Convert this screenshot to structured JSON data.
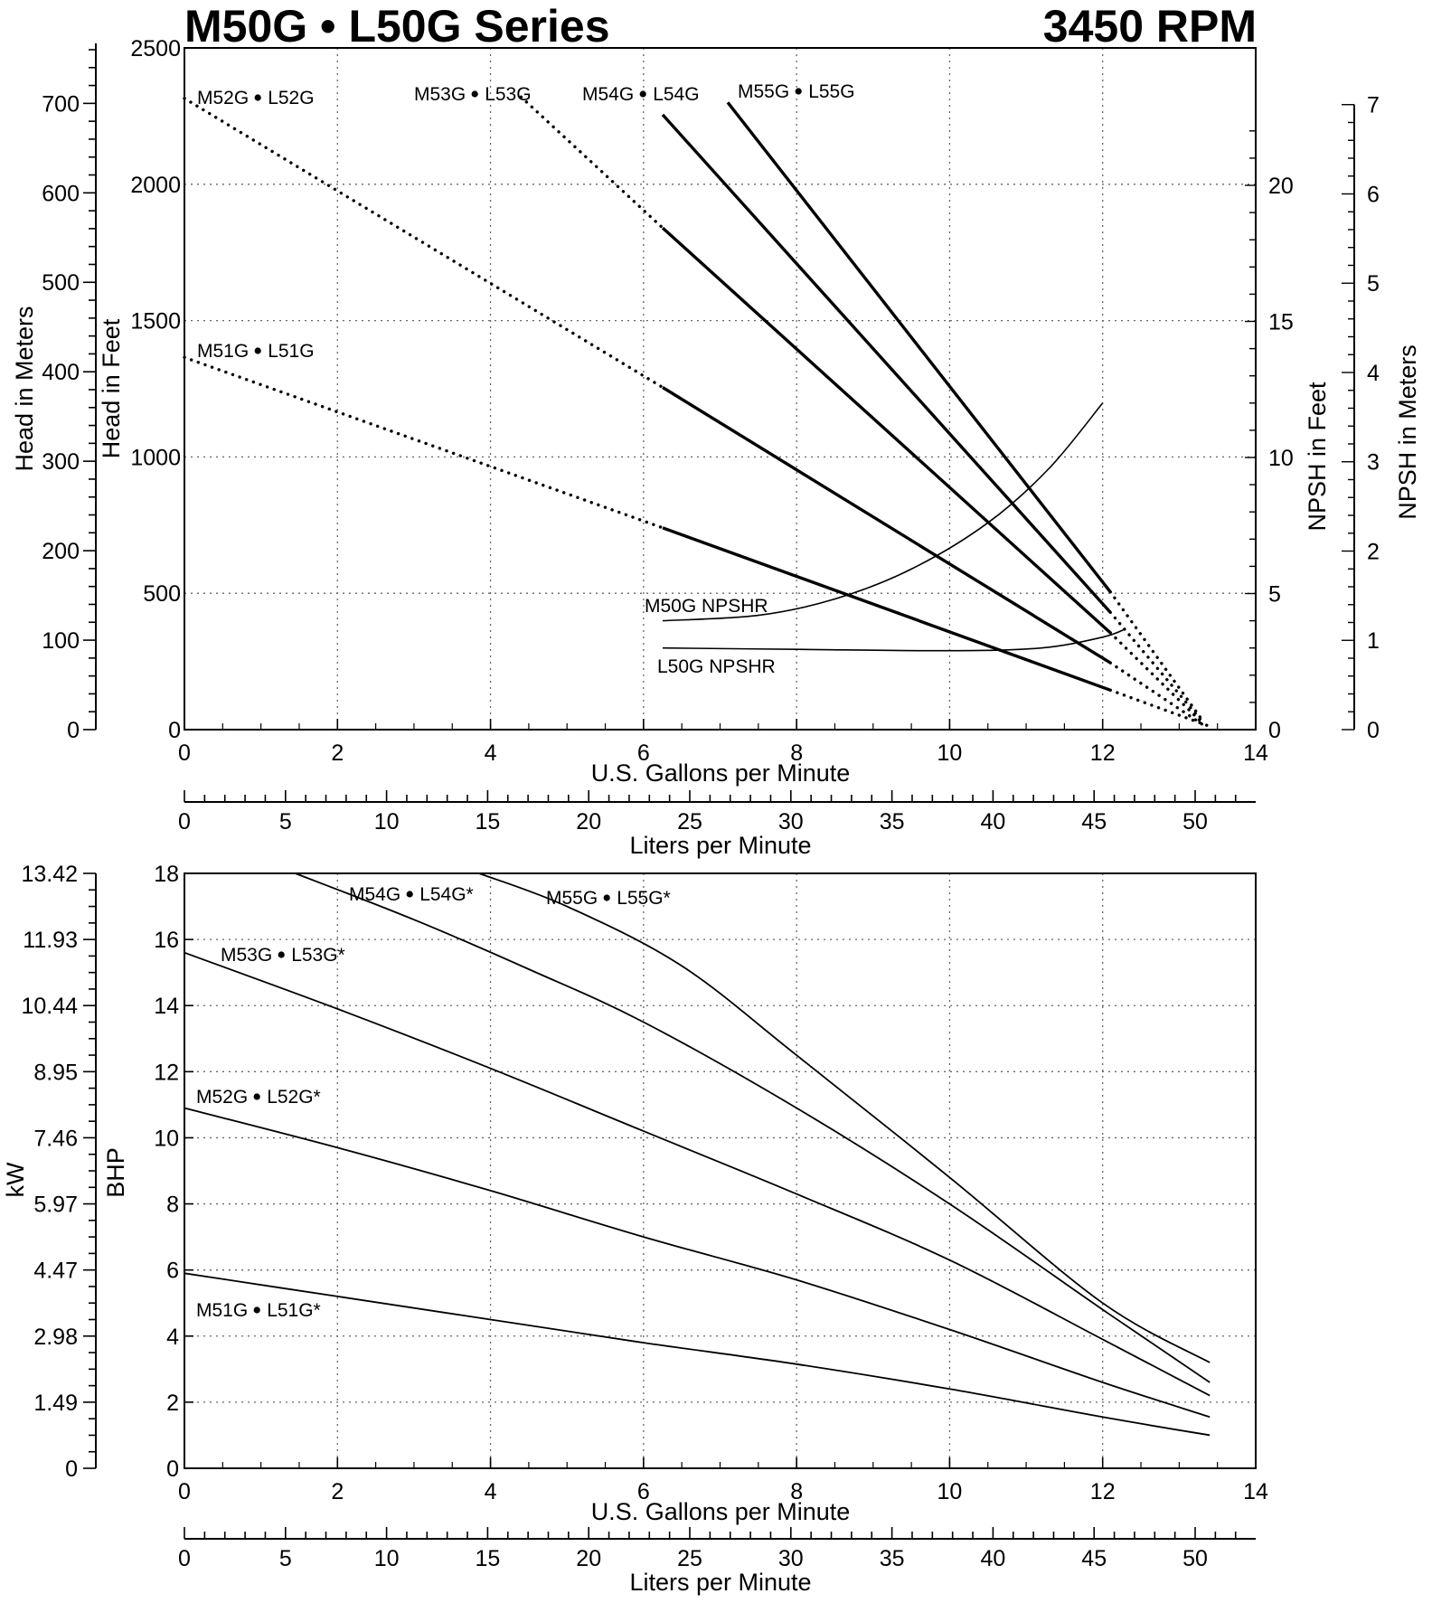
{
  "header": {
    "title_left": "M50G • L50G Series",
    "title_right": "3450 RPM"
  },
  "chart_data": [
    {
      "id": "head",
      "type": "line",
      "xlabel": "U.S. Gallons per Minute",
      "x2label": "Liters per Minute",
      "ylabel": "Head in Feet",
      "y2label": "Head in Meters",
      "y3label": "NPSH in Feet",
      "y4label": "NPSH in Meters",
      "xlim": [
        0,
        14
      ],
      "ylim": [
        0,
        2500
      ],
      "x_ticks": [
        "0",
        "2",
        "4",
        "6",
        "8",
        "10",
        "12",
        "14"
      ],
      "lpm_ticks": [
        "0",
        "5",
        "10",
        "15",
        "20",
        "25",
        "30",
        "35",
        "40",
        "45",
        "50"
      ],
      "y_ticks": [
        "0",
        "500",
        "1000",
        "1500",
        "2000",
        "2500"
      ],
      "meter_ticks": [
        "0",
        "100",
        "200",
        "300",
        "400",
        "500",
        "600",
        "700"
      ],
      "npsh_ft_ticks": [
        "0",
        "5",
        "10",
        "15",
        "20"
      ],
      "npsh_m_ticks": [
        "0",
        "1",
        "2",
        "3",
        "4",
        "5",
        "6",
        "7"
      ],
      "grid": true,
      "series": [
        {
          "name": "M51G • L51G",
          "dotted": [
            [
              0,
              1365
            ],
            [
              6.25,
              740
            ]
          ],
          "solid": [
            [
              6.25,
              740
            ],
            [
              12.1,
              145
            ]
          ],
          "tail": [
            [
              12.1,
              145
            ],
            [
              13.4,
              12
            ]
          ]
        },
        {
          "name": "M52G • L52G",
          "dotted": [
            [
              0,
              2315
            ],
            [
              6.25,
              1255
            ]
          ],
          "solid": [
            [
              6.25,
              1255
            ],
            [
              12.1,
              245
            ]
          ],
          "tail": [
            [
              12.1,
              245
            ],
            [
              13.3,
              20
            ]
          ]
        },
        {
          "name": "M53G • L53G",
          "dotted": [
            [
              4.4,
              2320
            ],
            [
              6.25,
              1840
            ]
          ],
          "solid": [
            [
              6.25,
              1840
            ],
            [
              12.1,
              355
            ]
          ],
          "tail": [
            [
              12.1,
              355
            ],
            [
              13.3,
              25
            ]
          ]
        },
        {
          "name": "M54G • L54G",
          "dotted": [],
          "solid": [
            [
              6.25,
              2255
            ],
            [
              12.1,
              430
            ]
          ],
          "tail": [
            [
              12.1,
              430
            ],
            [
              13.3,
              30
            ]
          ]
        },
        {
          "name": "M55G • L55G",
          "dotted": [],
          "solid": [
            [
              7.1,
              2300
            ],
            [
              12.1,
              505
            ]
          ],
          "tail": [
            [
              12.1,
              505
            ],
            [
              13.3,
              35
            ]
          ]
        }
      ],
      "npshr": [
        {
          "name": "M50G NPSHR",
          "points": [
            [
              6.25,
              4
            ],
            [
              7.5,
              4.2
            ],
            [
              8.5,
              4.8
            ],
            [
              9.5,
              5.9
            ],
            [
              10.5,
              7.6
            ],
            [
              11.3,
              9.6
            ],
            [
              12.0,
              12.0
            ]
          ]
        },
        {
          "name": "L50G NPSHR",
          "points": [
            [
              6.25,
              3
            ],
            [
              8,
              2.95
            ],
            [
              10,
              2.9
            ],
            [
              11.2,
              3.0
            ],
            [
              12.0,
              3.4
            ],
            [
              12.3,
              3.7
            ]
          ]
        }
      ]
    },
    {
      "id": "bhp",
      "type": "line",
      "xlabel": "U.S. Gallons per Minute",
      "x2label": "Liters per Minute",
      "ylabel": "BHP",
      "y2label": "kW",
      "xlim": [
        0,
        14
      ],
      "ylim": [
        0,
        18
      ],
      "x_ticks": [
        "0",
        "2",
        "4",
        "6",
        "8",
        "10",
        "12",
        "14"
      ],
      "lpm_ticks": [
        "0",
        "5",
        "10",
        "15",
        "20",
        "25",
        "30",
        "35",
        "40",
        "45",
        "50"
      ],
      "y_ticks": [
        "0",
        "2",
        "4",
        "6",
        "8",
        "10",
        "12",
        "14",
        "16",
        "18"
      ],
      "kw_ticks": [
        "0",
        "1.49",
        "2.98",
        "4.47",
        "5.97",
        "7.46",
        "8.95",
        "10.44",
        "11.93",
        "13.42"
      ],
      "grid": true,
      "series": [
        {
          "name": "M51G • L51G*",
          "points": [
            [
              0,
              5.9
            ],
            [
              2,
              5.2
            ],
            [
              4,
              4.5
            ],
            [
              6,
              3.8
            ],
            [
              8,
              3.15
            ],
            [
              10,
              2.4
            ],
            [
              12,
              1.55
            ],
            [
              13.4,
              1.0
            ]
          ]
        },
        {
          "name": "M52G • L52G*",
          "points": [
            [
              0,
              10.9
            ],
            [
              2,
              9.7
            ],
            [
              4,
              8.4
            ],
            [
              6,
              7.0
            ],
            [
              8,
              5.7
            ],
            [
              10,
              4.2
            ],
            [
              12,
              2.6
            ],
            [
              13.4,
              1.55
            ]
          ]
        },
        {
          "name": "M53G • L53G*",
          "points": [
            [
              0,
              15.6
            ],
            [
              2,
              13.9
            ],
            [
              4,
              12.1
            ],
            [
              6,
              10.2
            ],
            [
              8,
              8.3
            ],
            [
              10,
              6.3
            ],
            [
              12,
              3.9
            ],
            [
              13.4,
              2.2
            ]
          ]
        },
        {
          "name": "M54G • L54G*",
          "points": [
            [
              1.45,
              18
            ],
            [
              3,
              16.6
            ],
            [
              4.5,
              15.1
            ],
            [
              6,
              13.5
            ],
            [
              8,
              10.9
            ],
            [
              10,
              8.0
            ],
            [
              12,
              4.8
            ],
            [
              13.4,
              2.6
            ]
          ]
        },
        {
          "name": "M55G • L55G*",
          "points": [
            [
              3.85,
              18
            ],
            [
              5,
              17.0
            ],
            [
              6.5,
              15.2
            ],
            [
              8,
              12.5
            ],
            [
              10,
              8.8
            ],
            [
              12,
              5.0
            ],
            [
              13.4,
              3.2
            ]
          ]
        }
      ]
    }
  ]
}
